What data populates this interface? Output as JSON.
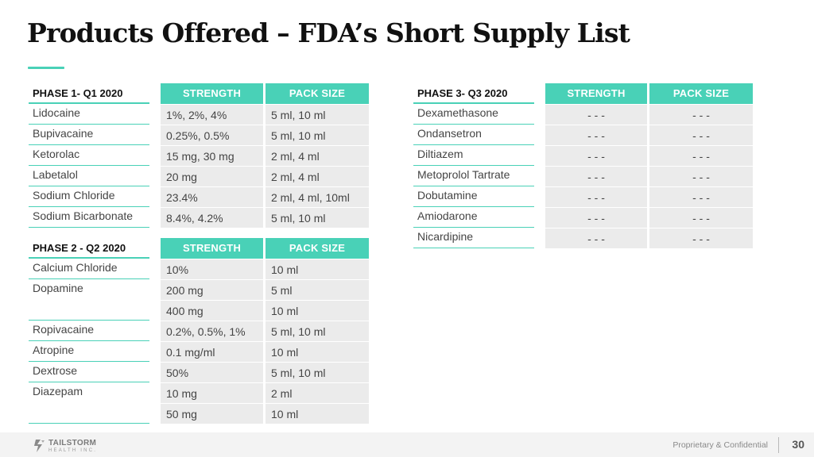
{
  "title": "Products Offered – FDA’s Short Supply List",
  "headers": {
    "strength": "STRENGTH",
    "pack_size": "PACK SIZE"
  },
  "phase1": {
    "label": "PHASE 1- Q1 2020",
    "products": [
      "Lidocaine",
      "Bupivacaine",
      "Ketorolac",
      "Labetalol",
      "Sodium Chloride",
      "Sodium Bicarbonate"
    ],
    "rows": [
      {
        "strength": "1%, 2%, 4%",
        "pack": "5 ml, 10 ml"
      },
      {
        "strength": "0.25%, 0.5%",
        "pack": "5 ml, 10 ml"
      },
      {
        "strength": "15 mg, 30 mg",
        "pack": "2 ml, 4 ml"
      },
      {
        "strength": "20 mg",
        "pack": "2 ml, 4 ml"
      },
      {
        "strength": "23.4%",
        "pack": "2 ml, 4 ml, 10ml"
      },
      {
        "strength": "8.4%, 4.2%",
        "pack": "5 ml, 10 ml"
      }
    ]
  },
  "phase2": {
    "label": "PHASE 2 - Q2 2020",
    "products": [
      "Calcium Chloride",
      "Dopamine",
      "Ropivacaine",
      "Atropine",
      "Dextrose",
      "Diazepam"
    ],
    "rows": [
      {
        "strength": "10%",
        "pack": "10 ml"
      },
      {
        "strength": "200 mg",
        "pack": "5 ml"
      },
      {
        "strength": "400 mg",
        "pack": "10 ml"
      },
      {
        "strength": "0.2%, 0.5%, 1%",
        "pack": "5 ml, 10 ml"
      },
      {
        "strength": "0.1 mg/ml",
        "pack": "10 ml"
      },
      {
        "strength": "50%",
        "pack": "5 ml, 10 ml"
      },
      {
        "strength": "10 mg",
        "pack": "2 ml"
      },
      {
        "strength": "50 mg",
        "pack": "10 ml"
      }
    ]
  },
  "phase3": {
    "label": "PHASE 3- Q3 2020",
    "products": [
      "Dexamethasone",
      "Ondansetron",
      "Diltiazem",
      "Metoprolol Tartrate",
      "Dobutamine",
      "Amiodarone",
      "Nicardipine"
    ],
    "rows": [
      {
        "strength": "- - -",
        "pack": "- - -"
      },
      {
        "strength": "- - -",
        "pack": "- - -"
      },
      {
        "strength": "- - -",
        "pack": "- - -"
      },
      {
        "strength": "- - -",
        "pack": "- - -"
      },
      {
        "strength": "- - -",
        "pack": "- - -"
      },
      {
        "strength": "- - -",
        "pack": "- - -"
      },
      {
        "strength": "- - -",
        "pack": "- - -"
      }
    ]
  },
  "footer": {
    "logo_word": "TAILSTORM",
    "logo_sub": "HEALTH INC.",
    "confidential": "Proprietary & Confidential",
    "page_number": "30"
  },
  "colors": {
    "accent": "#49d1b7",
    "cell_bg": "#ebebeb",
    "footer_bg": "#f3f3f3"
  }
}
